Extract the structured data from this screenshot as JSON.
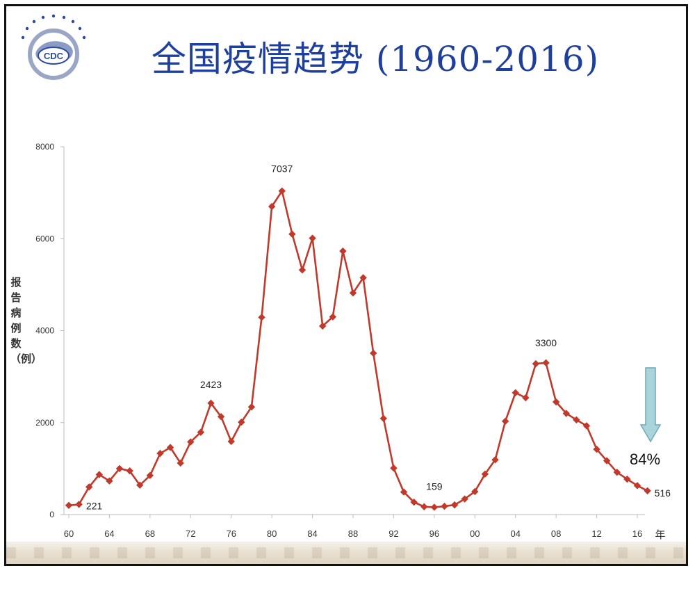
{
  "title": "全国疫情趋势 (1960-2016)",
  "logo": {
    "text": "CDC"
  },
  "chart_data": {
    "type": "line",
    "ylabel": "报告病例数（例）",
    "xunit": "年",
    "ylim": [
      0,
      8000
    ],
    "yticks": [
      0,
      2000,
      4000,
      6000,
      8000
    ],
    "xticks": [
      "60",
      "64",
      "68",
      "72",
      "76",
      "80",
      "84",
      "88",
      "92",
      "96",
      "00",
      "04",
      "08",
      "12",
      "16"
    ],
    "x": [
      1960,
      1961,
      1962,
      1963,
      1964,
      1965,
      1966,
      1967,
      1968,
      1969,
      1970,
      1971,
      1972,
      1973,
      1974,
      1975,
      1976,
      1977,
      1978,
      1979,
      1980,
      1981,
      1982,
      1983,
      1984,
      1985,
      1986,
      1987,
      1988,
      1989,
      1990,
      1991,
      1992,
      1993,
      1994,
      1995,
      1996,
      1997,
      1998,
      1999,
      2000,
      2001,
      2002,
      2003,
      2004,
      2005,
      2006,
      2007,
      2008,
      2009,
      2010,
      2011,
      2012,
      2013,
      2014,
      2015,
      2016,
      2017
    ],
    "values": [
      200,
      221,
      600,
      870,
      730,
      1000,
      950,
      640,
      850,
      1330,
      1460,
      1120,
      1580,
      1790,
      2423,
      2130,
      1590,
      2010,
      2340,
      4290,
      6700,
      7037,
      6100,
      5320,
      6010,
      4100,
      4300,
      5730,
      4820,
      5150,
      3510,
      2090,
      1010,
      490,
      270,
      170,
      159,
      180,
      210,
      340,
      500,
      880,
      1190,
      2030,
      2650,
      2540,
      3280,
      3300,
      2450,
      2200,
      2060,
      1930,
      1420,
      1170,
      920,
      770,
      630,
      516
    ],
    "color": "#c0392b",
    "annotations": [
      {
        "label": "221",
        "x": 1961,
        "y": 221
      },
      {
        "label": "2423",
        "x": 1974,
        "y": 2423
      },
      {
        "label": "7037",
        "x": 1981,
        "y": 7037
      },
      {
        "label": "159",
        "x": 1996,
        "y": 159
      },
      {
        "label": "3300",
        "x": 2007,
        "y": 3300
      },
      {
        "label": "516",
        "x": 2017,
        "y": 516
      }
    ],
    "callout": {
      "label": "84%",
      "arrow_color": "#a9d4dc"
    }
  }
}
